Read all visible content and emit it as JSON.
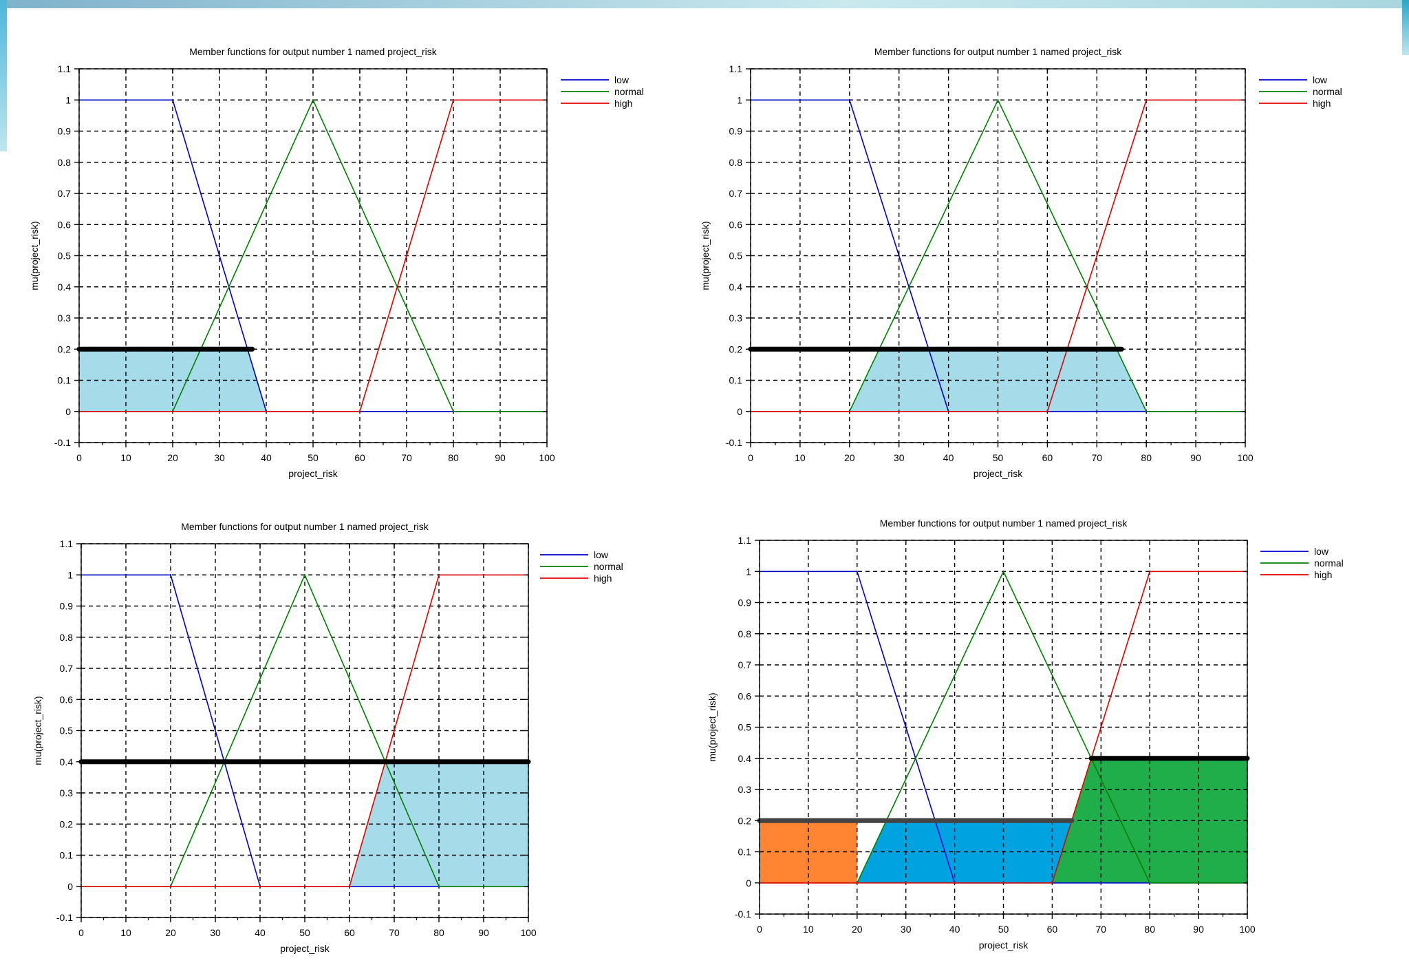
{
  "chart_data": [
    {
      "type": "line",
      "title": "Member functions for output number 1 named project_risk",
      "xlabel": "project_risk",
      "ylabel": "mu(project_risk)",
      "xlim": [
        0,
        100
      ],
      "ylim": [
        -0.1,
        1.1
      ],
      "xticks": [
        "0",
        "10",
        "20",
        "30",
        "40",
        "50",
        "60",
        "70",
        "80",
        "90",
        "100"
      ],
      "yticks": [
        "-0.1",
        "0",
        "0.1",
        "0.2",
        "0.3",
        "0.4",
        "0.5",
        "0.6",
        "0.7",
        "0.8",
        "0.9",
        "1",
        "1.1"
      ],
      "grid": true,
      "legend_position": "right",
      "series": [
        {
          "name": "low",
          "color": "#0000cc",
          "points": [
            [
              0,
              1
            ],
            [
              20,
              1
            ],
            [
              40,
              0
            ],
            [
              100,
              0
            ]
          ]
        },
        {
          "name": "normal",
          "color": "#008000",
          "points": [
            [
              0,
              0
            ],
            [
              20,
              0
            ],
            [
              50,
              1
            ],
            [
              80,
              0
            ],
            [
              100,
              0
            ]
          ]
        },
        {
          "name": "high",
          "color": "#e00000",
          "points": [
            [
              0,
              0
            ],
            [
              60,
              0
            ],
            [
              80,
              1
            ],
            [
              100,
              1
            ]
          ]
        }
      ],
      "cut_lines": [
        {
          "y": 0.2,
          "x": [
            0,
            37
          ],
          "color": "#000000"
        }
      ],
      "fills": [
        {
          "color": "#a6dcea",
          "points": [
            [
              0,
              0
            ],
            [
              0,
              0.2
            ],
            [
              36,
              0.2
            ],
            [
              40,
              0
            ]
          ]
        }
      ]
    },
    {
      "type": "line",
      "title": "Member functions for output number 1 named project_risk",
      "xlabel": "project_risk",
      "ylabel": "mu(project_risk)",
      "xlim": [
        0,
        100
      ],
      "ylim": [
        -0.1,
        1.1
      ],
      "xticks": [
        "0",
        "10",
        "20",
        "30",
        "40",
        "50",
        "60",
        "70",
        "80",
        "90",
        "100"
      ],
      "yticks": [
        "-0.1",
        "0",
        "0.1",
        "0.2",
        "0.3",
        "0.4",
        "0.5",
        "0.6",
        "0.7",
        "0.8",
        "0.9",
        "1",
        "1.1"
      ],
      "grid": true,
      "legend_position": "right",
      "series": [
        {
          "name": "low",
          "color": "#0000cc",
          "points": [
            [
              0,
              1
            ],
            [
              20,
              1
            ],
            [
              40,
              0
            ],
            [
              100,
              0
            ]
          ]
        },
        {
          "name": "normal",
          "color": "#008000",
          "points": [
            [
              0,
              0
            ],
            [
              20,
              0
            ],
            [
              50,
              1
            ],
            [
              80,
              0
            ],
            [
              100,
              0
            ]
          ]
        },
        {
          "name": "high",
          "color": "#e00000",
          "points": [
            [
              0,
              0
            ],
            [
              60,
              0
            ],
            [
              80,
              1
            ],
            [
              100,
              1
            ]
          ]
        }
      ],
      "cut_lines": [
        {
          "y": 0.2,
          "x": [
            0,
            75
          ],
          "color": "#000000"
        }
      ],
      "fills": [
        {
          "color": "#a6dcea",
          "points": [
            [
              20,
              0
            ],
            [
              26,
              0.2
            ],
            [
              74,
              0.2
            ],
            [
              80,
              0
            ]
          ]
        }
      ]
    },
    {
      "type": "line",
      "title": "Member functions for output number 1 named project_risk",
      "xlabel": "project_risk",
      "ylabel": "mu(project_risk)",
      "xlim": [
        0,
        100
      ],
      "ylim": [
        -0.1,
        1.1
      ],
      "xticks": [
        "0",
        "10",
        "20",
        "30",
        "40",
        "50",
        "60",
        "70",
        "80",
        "90",
        "100"
      ],
      "yticks": [
        "-0.1",
        "0",
        "0.1",
        "0.2",
        "0.3",
        "0.4",
        "0.5",
        "0.6",
        "0.7",
        "0.8",
        "0.9",
        "1",
        "1.1"
      ],
      "grid": true,
      "legend_position": "right",
      "series": [
        {
          "name": "low",
          "color": "#0000cc",
          "points": [
            [
              0,
              1
            ],
            [
              20,
              1
            ],
            [
              40,
              0
            ],
            [
              100,
              0
            ]
          ]
        },
        {
          "name": "normal",
          "color": "#008000",
          "points": [
            [
              0,
              0
            ],
            [
              20,
              0
            ],
            [
              50,
              1
            ],
            [
              80,
              0
            ],
            [
              100,
              0
            ]
          ]
        },
        {
          "name": "high",
          "color": "#e00000",
          "points": [
            [
              0,
              0
            ],
            [
              60,
              0
            ],
            [
              80,
              1
            ],
            [
              100,
              1
            ]
          ]
        }
      ],
      "cut_lines": [
        {
          "y": 0.4,
          "x": [
            0,
            100
          ],
          "color": "#000000"
        }
      ],
      "fills": [
        {
          "color": "#a6dcea",
          "points": [
            [
              60,
              0
            ],
            [
              68,
              0.4
            ],
            [
              100,
              0.4
            ],
            [
              100,
              0
            ]
          ]
        }
      ]
    },
    {
      "type": "line",
      "title": "Member functions for output number 1 named project_risk",
      "xlabel": "project_risk",
      "ylabel": "mu(project_risk)",
      "xlim": [
        0,
        100
      ],
      "ylim": [
        -0.1,
        1.1
      ],
      "xticks": [
        "0",
        "10",
        "20",
        "30",
        "40",
        "50",
        "60",
        "70",
        "80",
        "90",
        "100"
      ],
      "yticks": [
        "-0.1",
        "0",
        "0.1",
        "0.2",
        "0.3",
        "0.4",
        "0.5",
        "0.6",
        "0.7",
        "0.8",
        "0.9",
        "1",
        "1.1"
      ],
      "grid": true,
      "legend_position": "right",
      "series": [
        {
          "name": "low",
          "color": "#0000cc",
          "points": [
            [
              0,
              1
            ],
            [
              20,
              1
            ],
            [
              40,
              0
            ],
            [
              100,
              0
            ]
          ]
        },
        {
          "name": "normal",
          "color": "#008000",
          "points": [
            [
              0,
              0
            ],
            [
              20,
              0
            ],
            [
              50,
              1
            ],
            [
              80,
              0
            ],
            [
              100,
              0
            ]
          ]
        },
        {
          "name": "high",
          "color": "#e00000",
          "points": [
            [
              0,
              0
            ],
            [
              60,
              0
            ],
            [
              80,
              1
            ],
            [
              100,
              1
            ]
          ]
        }
      ],
      "cut_lines": [
        {
          "y": 0.2,
          "x": [
            0,
            64
          ],
          "color": "#444444"
        },
        {
          "y": 0.4,
          "x": [
            68,
            100
          ],
          "color": "#000000"
        }
      ],
      "fills": [
        {
          "color": "#ff8533",
          "points": [
            [
              0,
              0
            ],
            [
              0,
              0.2
            ],
            [
              20,
              0.2
            ],
            [
              20,
              0
            ]
          ]
        },
        {
          "color": "#00a3e0",
          "points": [
            [
              20,
              0
            ],
            [
              26,
              0.2
            ],
            [
              64,
              0.2
            ],
            [
              60,
              0
            ]
          ]
        },
        {
          "color": "#1fae4a",
          "points": [
            [
              60,
              0
            ],
            [
              68,
              0.4
            ],
            [
              100,
              0.4
            ],
            [
              100,
              0
            ]
          ]
        }
      ]
    }
  ]
}
